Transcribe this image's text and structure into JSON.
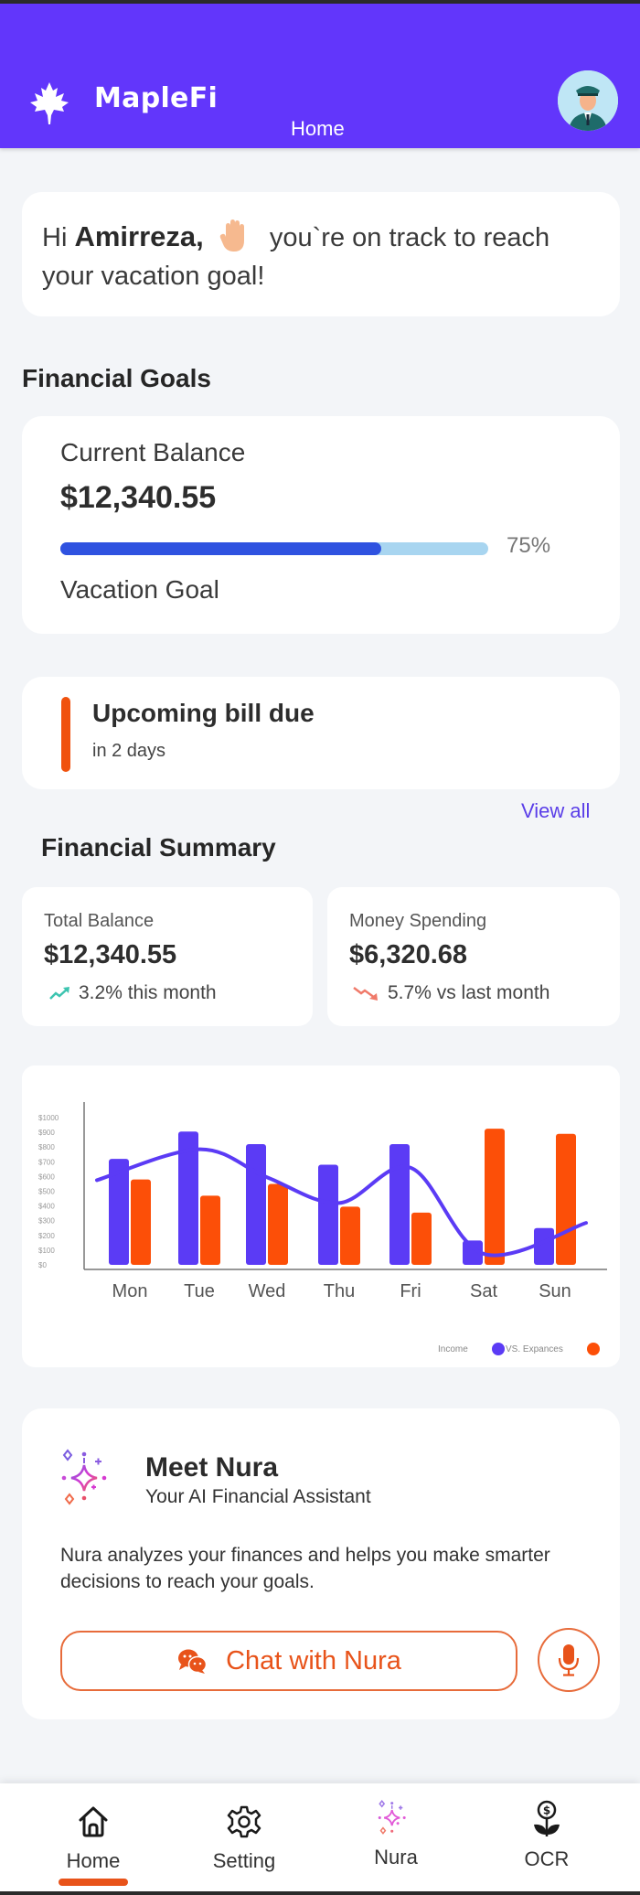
{
  "app": {
    "brand": "MapleFi",
    "page_title": "Home",
    "colors": {
      "primary": "#6236fb",
      "accent": "#e8531a",
      "progress": "#2f52e0"
    }
  },
  "greeting": {
    "prefix": "Hi",
    "name": "Amirreza,",
    "emoji": "waving-hand-icon",
    "message": "you`re on track to reach your vacation goal!"
  },
  "financial_goals": {
    "section_title": "Financial Goals",
    "current_balance_label": "Current Balance",
    "current_balance": "$12,340.55",
    "progress_percent": 75,
    "progress_label": "75%",
    "goal_name": "Vacation Goal"
  },
  "bill_alert": {
    "title": "Upcoming bill due",
    "subtitle": "in 2 days"
  },
  "financial_summary": {
    "view_all": "View all",
    "section_title": "Financial Summary",
    "cards": [
      {
        "label": "Total Balance",
        "value": "$12,340.55",
        "change": "3.2% this month",
        "trend": "up",
        "trend_color": "#3cc4b0"
      },
      {
        "label": "Money Spending",
        "value": "$6,320.68",
        "change": "5.7% vs last month",
        "trend": "down",
        "trend_color": "#f07a6a"
      }
    ]
  },
  "chart_data": {
    "type": "bar",
    "title": "",
    "xlabel": "",
    "ylabel": "",
    "categories": [
      "Mon",
      "Tue",
      "Wed",
      "Thu",
      "Fri",
      "Sat",
      "Sun"
    ],
    "series": [
      {
        "name": "Income",
        "color": "#5b3bf5",
        "values": [
          720,
          905,
          820,
          680,
          820,
          165,
          250
        ]
      },
      {
        "name": "Expances",
        "color": "#fc4f08",
        "values": [
          580,
          470,
          550,
          395,
          355,
          925,
          890
        ]
      },
      {
        "name": "Trend",
        "type": "line",
        "color": "#5b3bf5",
        "values": [
          575,
          785,
          595,
          420,
          660,
          75,
          285
        ]
      }
    ],
    "y_ticks": [
      "$1000",
      "$900",
      "$800",
      "$700",
      "$600",
      "$500",
      "$400",
      "$300",
      "$200",
      "$100",
      "$0"
    ],
    "ylim": [
      0,
      1000
    ],
    "grid": false,
    "legend": {
      "position": "bottom-right",
      "text_income": "Income",
      "text_vs": "VS. Expances"
    }
  },
  "nura": {
    "title": "Meet Nura",
    "subtitle": "Your AI Financial Assistant",
    "description": "Nura analyzes your finances and helps you make smarter decisions to reach your goals.",
    "chat_button": "Chat with Nura",
    "mic_button": "microphone-icon"
  },
  "bottom_nav": {
    "items": [
      {
        "label": "Home",
        "icon": "home-icon",
        "active": true
      },
      {
        "label": "Setting",
        "icon": "gear-icon",
        "active": false
      },
      {
        "label": "Nura",
        "icon": "sparkles-icon",
        "active": false
      },
      {
        "label": "OCR",
        "icon": "money-plant-icon",
        "active": false
      }
    ]
  }
}
